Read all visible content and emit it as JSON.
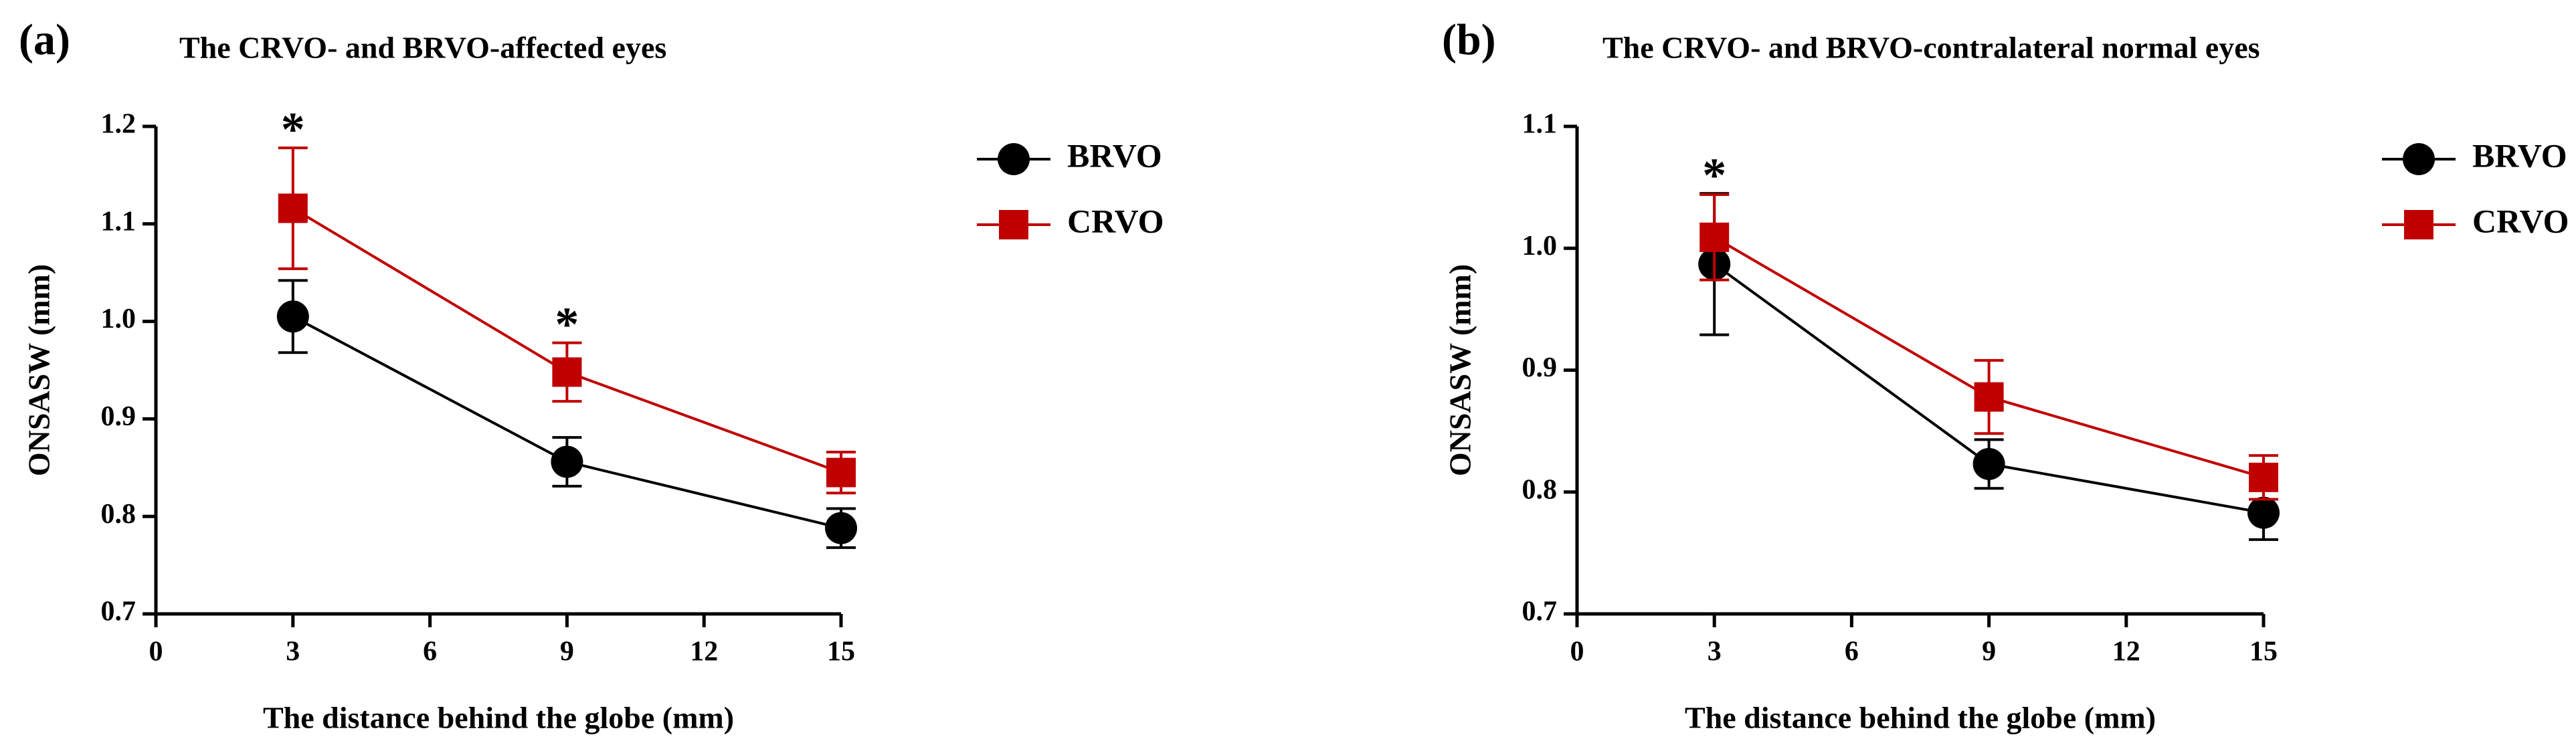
{
  "chart_data": [
    {
      "type": "line",
      "panel": "(a)",
      "title": "The CRVO- and BRVO-affected eyes",
      "xlabel": "The distance behind the globe (mm)",
      "ylabel": "ONSASW (mm)",
      "x": [
        3,
        9,
        15
      ],
      "xlim": [
        0,
        15
      ],
      "xticks": [
        0,
        3,
        6,
        9,
        12,
        15
      ],
      "ylim": [
        0.7,
        1.2
      ],
      "yticks": [
        0.7,
        0.8,
        0.9,
        {
          "value": 1,
          "label": "1.0"
        },
        1.1,
        1.2
      ],
      "series": [
        {
          "name": "BRVO",
          "color": "#000000",
          "marker": "circle",
          "values": [
            1.005,
            0.856,
            0.788
          ],
          "errors": [
            0.037,
            0.025,
            0.02
          ]
        },
        {
          "name": "CRVO",
          "color": "#c00000",
          "marker": "square",
          "values": [
            1.116,
            0.948,
            0.845
          ],
          "errors": [
            0.062,
            0.03,
            0.021
          ]
        }
      ],
      "annotations": [
        {
          "text": "*",
          "x": 3
        },
        {
          "text": "*",
          "x": 9
        }
      ]
    },
    {
      "type": "line",
      "panel": "(b)",
      "title": "The CRVO- and BRVO-contralateral normal eyes",
      "xlabel": "The distance behind the globe (mm)",
      "ylabel": "ONSASW (mm)",
      "x": [
        3,
        9,
        15
      ],
      "xlim": [
        0,
        15
      ],
      "xticks": [
        0,
        3,
        6,
        9,
        12,
        15
      ],
      "ylim": [
        0.7,
        1.1
      ],
      "yticks": [
        0.7,
        0.8,
        0.9,
        {
          "value": 1,
          "label": "1.0"
        },
        1.1
      ],
      "series": [
        {
          "name": "BRVO",
          "color": "#000000",
          "marker": "circle",
          "values": [
            0.987,
            0.823,
            0.783
          ],
          "errors": [
            0.058,
            0.02,
            0.022
          ]
        },
        {
          "name": "CRVO",
          "color": "#c00000",
          "marker": "square",
          "values": [
            1.009,
            0.878,
            0.812
          ],
          "errors": [
            0.035,
            0.03,
            0.018
          ]
        }
      ],
      "annotations": [
        {
          "text": "*",
          "x": 3
        }
      ]
    }
  ]
}
